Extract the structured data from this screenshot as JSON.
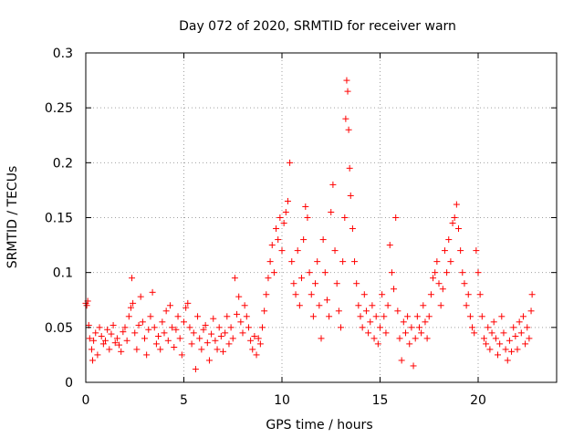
{
  "chart_data": {
    "type": "scatter",
    "title": "Day 072 of 2020, SRMTID for receiver warn",
    "xlabel": "GPS time / hours",
    "ylabel": "SRMTID / TECUs",
    "xlim": [
      0,
      24
    ],
    "ylim": [
      0,
      0.3
    ],
    "xticks": [
      0,
      5,
      10,
      15,
      20
    ],
    "xtick_labels": [
      "0",
      "5",
      "10",
      "15",
      "20"
    ],
    "yticks": [
      0,
      0.05,
      0.1,
      0.15,
      0.2,
      0.25,
      0.3
    ],
    "ytick_labels": [
      "0",
      "0.05",
      "0.1",
      "0.15",
      "0.2",
      "0.25",
      "0.3"
    ],
    "grid": true,
    "marker": "+",
    "marker_color": "#ff0000",
    "series": [
      {
        "name": "SRMTID",
        "color": "#ff0000",
        "points": [
          [
            0.0,
            0.072
          ],
          [
            0.05,
            0.07
          ],
          [
            0.1,
            0.074
          ],
          [
            0.15,
            0.052
          ],
          [
            0.2,
            0.04
          ],
          [
            0.3,
            0.03
          ],
          [
            0.35,
            0.02
          ],
          [
            0.4,
            0.038
          ],
          [
            0.5,
            0.045
          ],
          [
            0.6,
            0.025
          ],
          [
            0.7,
            0.05
          ],
          [
            0.8,
            0.042
          ],
          [
            0.9,
            0.035
          ],
          [
            1.0,
            0.038
          ],
          [
            1.1,
            0.048
          ],
          [
            1.2,
            0.03
          ],
          [
            1.3,
            0.044
          ],
          [
            1.4,
            0.052
          ],
          [
            1.5,
            0.036
          ],
          [
            1.6,
            0.04
          ],
          [
            1.7,
            0.034
          ],
          [
            1.8,
            0.028
          ],
          [
            1.9,
            0.046
          ],
          [
            2.0,
            0.05
          ],
          [
            2.1,
            0.038
          ],
          [
            2.2,
            0.06
          ],
          [
            2.3,
            0.068
          ],
          [
            2.35,
            0.095
          ],
          [
            2.4,
            0.072
          ],
          [
            2.5,
            0.045
          ],
          [
            2.6,
            0.03
          ],
          [
            2.7,
            0.052
          ],
          [
            2.8,
            0.078
          ],
          [
            2.9,
            0.055
          ],
          [
            3.0,
            0.04
          ],
          [
            3.1,
            0.025
          ],
          [
            3.2,
            0.048
          ],
          [
            3.3,
            0.06
          ],
          [
            3.4,
            0.082
          ],
          [
            3.5,
            0.05
          ],
          [
            3.6,
            0.035
          ],
          [
            3.7,
            0.042
          ],
          [
            3.8,
            0.03
          ],
          [
            3.9,
            0.055
          ],
          [
            4.0,
            0.045
          ],
          [
            4.1,
            0.065
          ],
          [
            4.2,
            0.038
          ],
          [
            4.3,
            0.07
          ],
          [
            4.4,
            0.05
          ],
          [
            4.5,
            0.032
          ],
          [
            4.6,
            0.048
          ],
          [
            4.7,
            0.06
          ],
          [
            4.8,
            0.04
          ],
          [
            4.9,
            0.025
          ],
          [
            5.0,
            0.055
          ],
          [
            5.1,
            0.068
          ],
          [
            5.2,
            0.072
          ],
          [
            5.3,
            0.05
          ],
          [
            5.4,
            0.035
          ],
          [
            5.5,
            0.045
          ],
          [
            5.6,
            0.012
          ],
          [
            5.7,
            0.06
          ],
          [
            5.8,
            0.04
          ],
          [
            5.9,
            0.03
          ],
          [
            6.0,
            0.048
          ],
          [
            6.1,
            0.052
          ],
          [
            6.2,
            0.036
          ],
          [
            6.3,
            0.02
          ],
          [
            6.4,
            0.044
          ],
          [
            6.5,
            0.058
          ],
          [
            6.6,
            0.038
          ],
          [
            6.7,
            0.03
          ],
          [
            6.8,
            0.05
          ],
          [
            6.9,
            0.042
          ],
          [
            7.0,
            0.028
          ],
          [
            7.1,
            0.045
          ],
          [
            7.2,
            0.06
          ],
          [
            7.3,
            0.035
          ],
          [
            7.4,
            0.05
          ],
          [
            7.5,
            0.04
          ],
          [
            7.6,
            0.095
          ],
          [
            7.7,
            0.062
          ],
          [
            7.8,
            0.078
          ],
          [
            7.9,
            0.055
          ],
          [
            8.0,
            0.045
          ],
          [
            8.1,
            0.07
          ],
          [
            8.2,
            0.06
          ],
          [
            8.3,
            0.05
          ],
          [
            8.4,
            0.038
          ],
          [
            8.5,
            0.03
          ],
          [
            8.6,
            0.042
          ],
          [
            8.7,
            0.025
          ],
          [
            8.8,
            0.04
          ],
          [
            8.9,
            0.035
          ],
          [
            9.0,
            0.05
          ],
          [
            9.1,
            0.065
          ],
          [
            9.2,
            0.08
          ],
          [
            9.3,
            0.095
          ],
          [
            9.4,
            0.11
          ],
          [
            9.5,
            0.125
          ],
          [
            9.6,
            0.1
          ],
          [
            9.7,
            0.14
          ],
          [
            9.8,
            0.13
          ],
          [
            9.9,
            0.15
          ],
          [
            10.0,
            0.12
          ],
          [
            10.1,
            0.145
          ],
          [
            10.2,
            0.155
          ],
          [
            10.3,
            0.165
          ],
          [
            10.4,
            0.2
          ],
          [
            10.5,
            0.11
          ],
          [
            10.6,
            0.09
          ],
          [
            10.7,
            0.08
          ],
          [
            10.8,
            0.12
          ],
          [
            10.9,
            0.07
          ],
          [
            11.0,
            0.095
          ],
          [
            11.1,
            0.13
          ],
          [
            11.2,
            0.16
          ],
          [
            11.3,
            0.15
          ],
          [
            11.4,
            0.1
          ],
          [
            11.5,
            0.08
          ],
          [
            11.6,
            0.06
          ],
          [
            11.7,
            0.09
          ],
          [
            11.8,
            0.11
          ],
          [
            11.9,
            0.07
          ],
          [
            12.0,
            0.04
          ],
          [
            12.1,
            0.13
          ],
          [
            12.2,
            0.1
          ],
          [
            12.3,
            0.075
          ],
          [
            12.4,
            0.06
          ],
          [
            12.5,
            0.155
          ],
          [
            12.6,
            0.18
          ],
          [
            12.7,
            0.12
          ],
          [
            12.8,
            0.09
          ],
          [
            12.9,
            0.065
          ],
          [
            13.0,
            0.05
          ],
          [
            13.1,
            0.11
          ],
          [
            13.2,
            0.15
          ],
          [
            13.25,
            0.24
          ],
          [
            13.3,
            0.275
          ],
          [
            13.35,
            0.265
          ],
          [
            13.4,
            0.23
          ],
          [
            13.45,
            0.195
          ],
          [
            13.5,
            0.17
          ],
          [
            13.6,
            0.14
          ],
          [
            13.7,
            0.11
          ],
          [
            13.8,
            0.09
          ],
          [
            13.9,
            0.07
          ],
          [
            14.0,
            0.06
          ],
          [
            14.1,
            0.05
          ],
          [
            14.2,
            0.08
          ],
          [
            14.3,
            0.065
          ],
          [
            14.4,
            0.045
          ],
          [
            14.5,
            0.055
          ],
          [
            14.6,
            0.07
          ],
          [
            14.7,
            0.04
          ],
          [
            14.8,
            0.06
          ],
          [
            14.9,
            0.035
          ],
          [
            15.0,
            0.05
          ],
          [
            15.1,
            0.08
          ],
          [
            15.2,
            0.06
          ],
          [
            15.3,
            0.045
          ],
          [
            15.4,
            0.07
          ],
          [
            15.5,
            0.125
          ],
          [
            15.6,
            0.1
          ],
          [
            15.7,
            0.085
          ],
          [
            15.8,
            0.15
          ],
          [
            15.9,
            0.065
          ],
          [
            16.0,
            0.04
          ],
          [
            16.1,
            0.02
          ],
          [
            16.2,
            0.055
          ],
          [
            16.3,
            0.045
          ],
          [
            16.4,
            0.06
          ],
          [
            16.5,
            0.035
          ],
          [
            16.6,
            0.05
          ],
          [
            16.7,
            0.015
          ],
          [
            16.8,
            0.04
          ],
          [
            16.9,
            0.06
          ],
          [
            17.0,
            0.05
          ],
          [
            17.1,
            0.045
          ],
          [
            17.2,
            0.07
          ],
          [
            17.3,
            0.055
          ],
          [
            17.4,
            0.04
          ],
          [
            17.5,
            0.06
          ],
          [
            17.6,
            0.08
          ],
          [
            17.7,
            0.095
          ],
          [
            17.8,
            0.1
          ],
          [
            17.9,
            0.11
          ],
          [
            18.0,
            0.09
          ],
          [
            18.1,
            0.07
          ],
          [
            18.2,
            0.085
          ],
          [
            18.3,
            0.12
          ],
          [
            18.4,
            0.1
          ],
          [
            18.5,
            0.13
          ],
          [
            18.6,
            0.11
          ],
          [
            18.7,
            0.145
          ],
          [
            18.8,
            0.15
          ],
          [
            18.9,
            0.162
          ],
          [
            19.0,
            0.14
          ],
          [
            19.1,
            0.12
          ],
          [
            19.2,
            0.1
          ],
          [
            19.3,
            0.09
          ],
          [
            19.4,
            0.07
          ],
          [
            19.5,
            0.08
          ],
          [
            19.6,
            0.06
          ],
          [
            19.7,
            0.05
          ],
          [
            19.8,
            0.045
          ],
          [
            19.9,
            0.12
          ],
          [
            20.0,
            0.1
          ],
          [
            20.1,
            0.08
          ],
          [
            20.2,
            0.06
          ],
          [
            20.3,
            0.04
          ],
          [
            20.4,
            0.035
          ],
          [
            20.5,
            0.05
          ],
          [
            20.6,
            0.03
          ],
          [
            20.7,
            0.045
          ],
          [
            20.8,
            0.055
          ],
          [
            20.9,
            0.04
          ],
          [
            21.0,
            0.025
          ],
          [
            21.1,
            0.035
          ],
          [
            21.2,
            0.06
          ],
          [
            21.3,
            0.045
          ],
          [
            21.4,
            0.03
          ],
          [
            21.5,
            0.02
          ],
          [
            21.6,
            0.038
          ],
          [
            21.7,
            0.028
          ],
          [
            21.8,
            0.05
          ],
          [
            21.9,
            0.042
          ],
          [
            22.0,
            0.03
          ],
          [
            22.1,
            0.055
          ],
          [
            22.2,
            0.045
          ],
          [
            22.3,
            0.06
          ],
          [
            22.4,
            0.035
          ],
          [
            22.5,
            0.05
          ],
          [
            22.6,
            0.04
          ],
          [
            22.7,
            0.065
          ],
          [
            22.75,
            0.08
          ]
        ]
      }
    ]
  }
}
